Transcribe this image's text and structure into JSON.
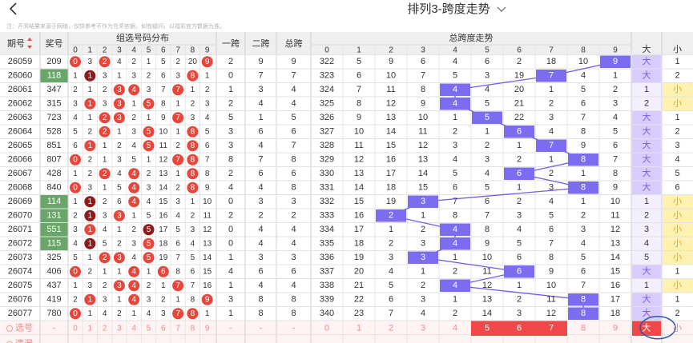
{
  "header": {
    "title": "排列3-跨度走势",
    "notice": "注：开奖结果来源于网络，仅供参考不作为兑奖依据，如有疑问，以福彩官方数据为准。"
  },
  "table": {
    "columns": {
      "period": "期号",
      "number": "奖号",
      "dist": "组选号码分布",
      "span1": "一跨",
      "span2": "二跨",
      "span": "总跨",
      "trend": "总跨度走势",
      "big": "大",
      "small": "小"
    },
    "digits": [
      0,
      1,
      2,
      3,
      4,
      5,
      6,
      7,
      8,
      9
    ],
    "rows": [
      {
        "period": "26059",
        "number": "209",
        "dist": [
          0,
          3,
          2,
          4,
          2,
          1,
          5,
          2,
          20,
          9
        ],
        "span1": 2,
        "span2": 9,
        "span": 9,
        "trend": [
          322,
          5,
          9,
          6,
          4,
          6,
          2,
          18,
          10,
          9
        ],
        "big": "大",
        "small": 1
      },
      {
        "period": "26060",
        "number": "118",
        "dist": [
          1,
          1,
          3,
          1,
          3,
          2,
          6,
          3,
          8,
          1
        ],
        "span1": 0,
        "span2": 7,
        "span": 7,
        "trend": [
          323,
          6,
          10,
          7,
          5,
          3,
          19,
          7,
          4,
          1
        ],
        "big": "大",
        "small": 2
      },
      {
        "period": "26061",
        "number": "347",
        "dist": [
          2,
          1,
          2,
          3,
          4,
          3,
          7,
          7,
          1,
          2
        ],
        "span1": 1,
        "span2": 3,
        "span": 4,
        "trend": [
          324,
          7,
          11,
          8,
          4,
          4,
          20,
          1,
          5,
          2
        ],
        "big": 1,
        "small": "小"
      },
      {
        "period": "26062",
        "number": "315",
        "dist": [
          3,
          1,
          3,
          3,
          1,
          5,
          8,
          1,
          2,
          3
        ],
        "span1": 2,
        "span2": 4,
        "span": 4,
        "trend": [
          325,
          8,
          12,
          9,
          4,
          5,
          21,
          2,
          6,
          3
        ],
        "big": 2,
        "small": "小"
      },
      {
        "period": "26063",
        "number": "723",
        "dist": [
          4,
          1,
          2,
          3,
          2,
          1,
          9,
          7,
          3,
          4
        ],
        "span1": 5,
        "span2": 1,
        "span": 5,
        "trend": [
          326,
          9,
          13,
          10,
          1,
          5,
          22,
          3,
          7,
          4
        ],
        "big": "大",
        "small": 1
      },
      {
        "period": "26064",
        "number": "528",
        "dist": [
          5,
          2,
          2,
          1,
          3,
          5,
          10,
          1,
          8,
          5
        ],
        "span1": 3,
        "span2": 6,
        "span": 6,
        "trend": [
          327,
          10,
          14,
          11,
          2,
          1,
          6,
          4,
          8,
          5
        ],
        "big": "大",
        "small": 2
      },
      {
        "period": "26065",
        "number": "851",
        "dist": [
          6,
          1,
          1,
          2,
          4,
          5,
          11,
          2,
          8,
          6
        ],
        "span1": 3,
        "span2": 4,
        "span": 7,
        "trend": [
          328,
          11,
          15,
          12,
          3,
          2,
          1,
          7,
          9,
          6
        ],
        "big": "大",
        "small": 3
      },
      {
        "period": "26066",
        "number": "807",
        "dist": [
          0,
          2,
          1,
          3,
          5,
          1,
          12,
          7,
          8,
          7
        ],
        "span1": 8,
        "span2": 7,
        "span": 8,
        "trend": [
          329,
          12,
          16,
          13,
          4,
          3,
          2,
          1,
          8,
          7
        ],
        "big": "大",
        "small": 4
      },
      {
        "period": "26067",
        "number": "428",
        "dist": [
          1,
          2,
          2,
          4,
          4,
          2,
          13,
          1,
          8,
          8
        ],
        "span1": 2,
        "span2": 6,
        "span": 6,
        "trend": [
          330,
          13,
          17,
          14,
          5,
          4,
          6,
          2,
          1,
          8
        ],
        "big": "大",
        "small": 5
      },
      {
        "period": "26068",
        "number": "840",
        "dist": [
          0,
          3,
          1,
          5,
          4,
          3,
          14,
          2,
          8,
          9
        ],
        "span1": 4,
        "span2": 4,
        "span": 8,
        "trend": [
          331,
          14,
          18,
          15,
          6,
          5,
          1,
          3,
          8,
          9
        ],
        "big": "大",
        "small": 6
      },
      {
        "period": "26069",
        "number": "114",
        "dist": [
          1,
          1,
          2,
          6,
          4,
          4,
          15,
          3,
          1,
          10
        ],
        "span1": 0,
        "span2": 3,
        "span": 3,
        "trend": [
          332,
          15,
          19,
          3,
          7,
          6,
          2,
          4,
          1,
          10
        ],
        "big": 1,
        "small": "小"
      },
      {
        "period": "26070",
        "number": "131",
        "dist": [
          2,
          1,
          3,
          3,
          1,
          5,
          16,
          4,
          2,
          11
        ],
        "span1": 2,
        "span2": 2,
        "span": 2,
        "trend": [
          333,
          16,
          2,
          1,
          8,
          7,
          3,
          5,
          2,
          11
        ],
        "big": 2,
        "small": "小"
      },
      {
        "period": "26071",
        "number": "551",
        "dist": [
          3,
          1,
          4,
          1,
          2,
          5,
          17,
          5,
          3,
          12
        ],
        "span1": 0,
        "span2": 4,
        "span": 4,
        "trend": [
          334,
          17,
          1,
          2,
          4,
          8,
          4,
          6,
          3,
          12
        ],
        "big": 3,
        "small": "小"
      },
      {
        "period": "26072",
        "number": "115",
        "dist": [
          4,
          1,
          5,
          2,
          3,
          5,
          18,
          6,
          4,
          13
        ],
        "span1": 0,
        "span2": 4,
        "span": 4,
        "trend": [
          335,
          18,
          2,
          3,
          4,
          9,
          5,
          7,
          4,
          13
        ],
        "big": 4,
        "small": "小"
      },
      {
        "period": "26073",
        "number": "325",
        "dist": [
          5,
          1,
          2,
          3,
          4,
          5,
          19,
          7,
          5,
          14
        ],
        "span1": 1,
        "span2": 3,
        "span": 3,
        "trend": [
          336,
          19,
          3,
          3,
          1,
          10,
          6,
          8,
          5,
          14
        ],
        "big": 5,
        "small": "小"
      },
      {
        "period": "26074",
        "number": "406",
        "dist": [
          0,
          2,
          1,
          1,
          4,
          1,
          6,
          8,
          6,
          15
        ],
        "span1": 4,
        "span2": 6,
        "span": 6,
        "trend": [
          337,
          20,
          4,
          1,
          2,
          11,
          6,
          9,
          6,
          15
        ],
        "big": "大",
        "small": 1
      },
      {
        "period": "26075",
        "number": "437",
        "dist": [
          1,
          3,
          2,
          3,
          4,
          2,
          1,
          7,
          7,
          16
        ],
        "span1": 1,
        "span2": 4,
        "span": 4,
        "trend": [
          338,
          21,
          5,
          2,
          4,
          12,
          1,
          10,
          7,
          16
        ],
        "big": 1,
        "small": "小"
      },
      {
        "period": "26076",
        "number": "419",
        "dist": [
          2,
          1,
          3,
          1,
          4,
          3,
          2,
          1,
          8,
          9
        ],
        "span1": 3,
        "span2": 8,
        "span": 8,
        "trend": [
          339,
          22,
          6,
          3,
          1,
          13,
          2,
          11,
          8,
          17
        ],
        "big": "大",
        "small": 1
      },
      {
        "period": "26077",
        "number": "780",
        "dist": [
          0,
          1,
          4,
          2,
          1,
          4,
          3,
          7,
          8,
          1
        ],
        "span1": 1,
        "span2": 8,
        "span": 8,
        "trend": [
          340,
          23,
          7,
          4,
          2,
          14,
          3,
          12,
          8,
          18
        ],
        "big": "大",
        "small": 2
      }
    ],
    "select": {
      "label": "选号",
      "placeholder": "-",
      "selected": [
        5,
        6,
        7
      ],
      "big_selected": true
    },
    "miss_label": "遗漏"
  }
}
